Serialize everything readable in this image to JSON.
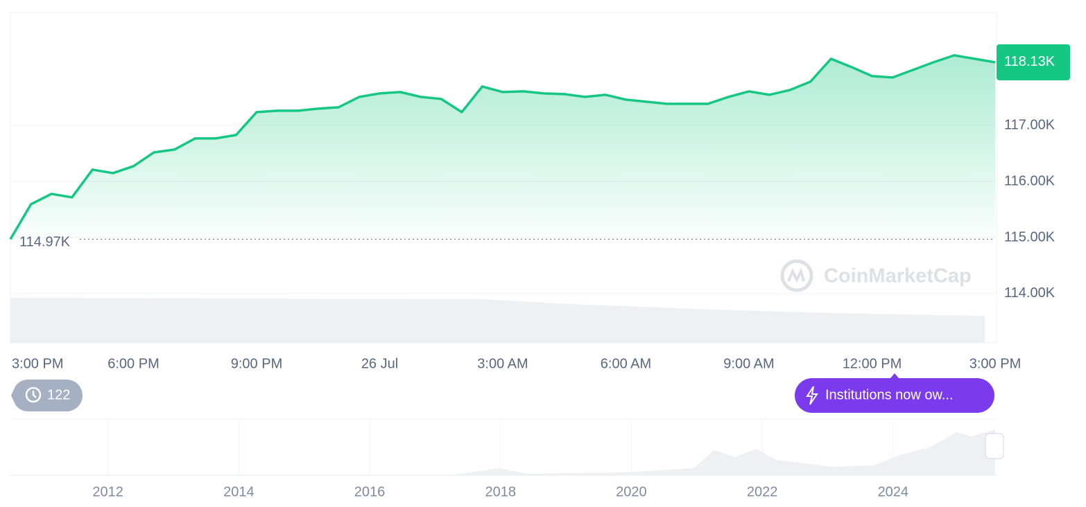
{
  "chart_data": {
    "type": "line",
    "x": [
      0,
      0.5,
      1,
      1.5,
      2,
      2.5,
      3,
      3.5,
      4,
      4.5,
      5,
      5.5,
      6,
      6.5,
      7,
      7.5,
      8,
      8.5,
      9,
      9.5,
      10,
      10.5,
      11,
      11.5,
      12,
      12.5,
      13,
      13.5,
      14,
      14.5,
      15,
      15.5,
      16,
      16.5,
      17,
      17.5,
      18,
      18.5,
      19,
      19.5,
      20,
      20.5,
      21,
      21.5,
      22,
      22.5,
      23,
      23.5,
      24
    ],
    "values": [
      114970,
      115594,
      115780,
      115718,
      116213,
      116151,
      116275,
      116522,
      116572,
      116770,
      116770,
      116832,
      117240,
      117265,
      117265,
      117302,
      117327,
      117512,
      117574,
      117599,
      117512,
      117475,
      117240,
      117698,
      117599,
      117611,
      117574,
      117562,
      117512,
      117550,
      117463,
      117426,
      117389,
      117389,
      117389,
      117512,
      117611,
      117550,
      117636,
      117785,
      118193,
      118045,
      117884,
      117859,
      117995,
      118131,
      118255,
      118193,
      118130
    ],
    "color": "#16c784",
    "xlim": [
      0,
      24
    ],
    "xticks": [
      {
        "value": 0,
        "label": "3:00 PM"
      },
      {
        "value": 3,
        "label": "6:00 PM"
      },
      {
        "value": 6,
        "label": "9:00 PM"
      },
      {
        "value": 9,
        "label": "26 Jul"
      },
      {
        "value": 12,
        "label": "3:00 AM"
      },
      {
        "value": 15,
        "label": "6:00 AM"
      },
      {
        "value": 18,
        "label": "9:00 AM"
      },
      {
        "value": 21,
        "label": "12:00 PM"
      },
      {
        "value": 24,
        "label": "3:00 PM"
      }
    ],
    "ylim": [
      113120,
      119020
    ],
    "yticks": [
      {
        "value": 114000,
        "label": "114.00K"
      },
      {
        "value": 115000,
        "label": "115.00K"
      },
      {
        "value": 116000,
        "label": "116.00K"
      },
      {
        "value": 117000,
        "label": "117.00K"
      }
    ],
    "grid": true,
    "annotations": [
      {
        "value": 114970,
        "label": "114.97K"
      },
      {
        "value": 118130,
        "label": "118.13K"
      }
    ],
    "watermark": "CoinMarketCap"
  },
  "navigator": {
    "xlim": [
      2010.52,
      2025.56
    ],
    "xticks": [
      2012,
      2014,
      2016,
      2018,
      2020,
      2022,
      2024
    ]
  },
  "badges": {
    "history_count": 122,
    "news": "Institutions now ow..."
  }
}
